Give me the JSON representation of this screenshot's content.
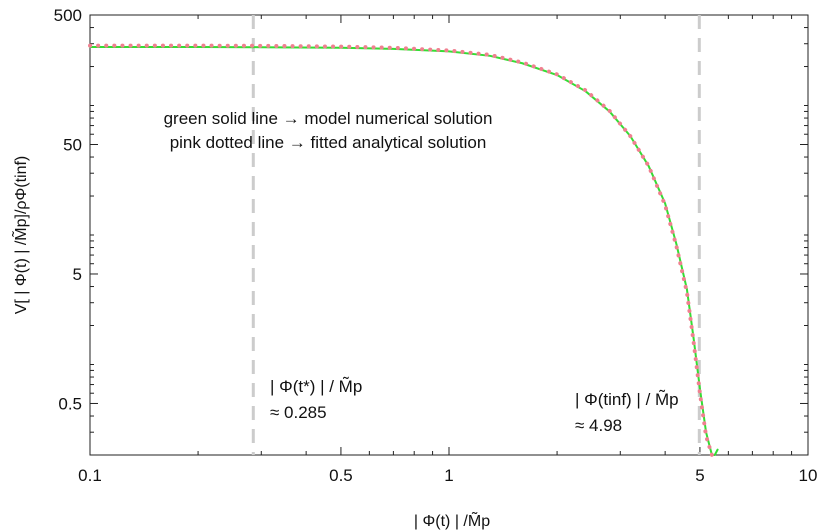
{
  "chart_data": {
    "type": "line",
    "xscale": "log",
    "yscale": "log",
    "xlim": [
      0.1,
      10
    ],
    "ylim": [
      0.2,
      500
    ],
    "x_ticks": [
      {
        "value": 0.1,
        "label": "0.1"
      },
      {
        "value": 0.5,
        "label": "0.5"
      },
      {
        "value": 1,
        "label": "1"
      },
      {
        "value": 5,
        "label": "5"
      },
      {
        "value": 10,
        "label": "10"
      }
    ],
    "y_ticks": [
      {
        "value": 0.5,
        "label": "0.5"
      },
      {
        "value": 5,
        "label": "5"
      },
      {
        "value": 50,
        "label": "50"
      },
      {
        "value": 500,
        "label": "500"
      }
    ],
    "xlabel": "| Φ(t) | /M̃p",
    "ylabel": "V[ | Φ(t) | /M̃p]/ρΦ(tinf)",
    "grid": false,
    "series": [
      {
        "name": "model numerical solution",
        "color": "#33dd33",
        "style": "solid",
        "points": [
          [
            0.1,
            283
          ],
          [
            0.2,
            283
          ],
          [
            0.3,
            282
          ],
          [
            0.5,
            279
          ],
          [
            0.7,
            274
          ],
          [
            1.0,
            262
          ],
          [
            1.3,
            242
          ],
          [
            1.6,
            212
          ],
          [
            2.0,
            172
          ],
          [
            2.4,
            129
          ],
          [
            2.8,
            90
          ],
          [
            3.2,
            58
          ],
          [
            3.6,
            34
          ],
          [
            4.0,
            17.5
          ],
          [
            4.3,
            8.5
          ],
          [
            4.6,
            3.8
          ],
          [
            4.8,
            1.6
          ],
          [
            5.0,
            0.65
          ],
          [
            5.2,
            0.3
          ],
          [
            5.4,
            0.2
          ],
          [
            5.5,
            0.2
          ],
          [
            5.6,
            0.22
          ]
        ]
      },
      {
        "name": "fitted analytical solution",
        "color": "#f08090",
        "style": "dotted",
        "points": [
          [
            0.1,
            290
          ],
          [
            0.2,
            290
          ],
          [
            0.3,
            289
          ],
          [
            0.5,
            285
          ],
          [
            0.7,
            279
          ],
          [
            1.0,
            266
          ],
          [
            1.3,
            246
          ],
          [
            1.6,
            215
          ],
          [
            2.0,
            174
          ],
          [
            2.4,
            131
          ],
          [
            2.8,
            91
          ],
          [
            3.2,
            58
          ],
          [
            3.6,
            34
          ],
          [
            4.0,
            17
          ],
          [
            4.3,
            8.2
          ],
          [
            4.6,
            3.6
          ],
          [
            4.8,
            1.5
          ],
          [
            5.0,
            0.6
          ],
          [
            5.2,
            0.28
          ],
          [
            5.4,
            0.2
          ]
        ]
      }
    ],
    "vlines": [
      {
        "x": 0.285,
        "color": "#cccccc",
        "style": "dashed"
      },
      {
        "x": 4.98,
        "color": "#cccccc",
        "style": "dashed"
      }
    ]
  },
  "legend_text": {
    "line1": "green solid line → model numerical solution",
    "line2": "pink dotted line → fitted analytical solution"
  },
  "annotations": {
    "t_star_label": "| Φ(t*) | / M̃p",
    "t_star_value": "≈ 0.285",
    "t_inf_label": "| Φ(tinf) | / M̃p",
    "t_inf_value": "≈ 4.98"
  }
}
